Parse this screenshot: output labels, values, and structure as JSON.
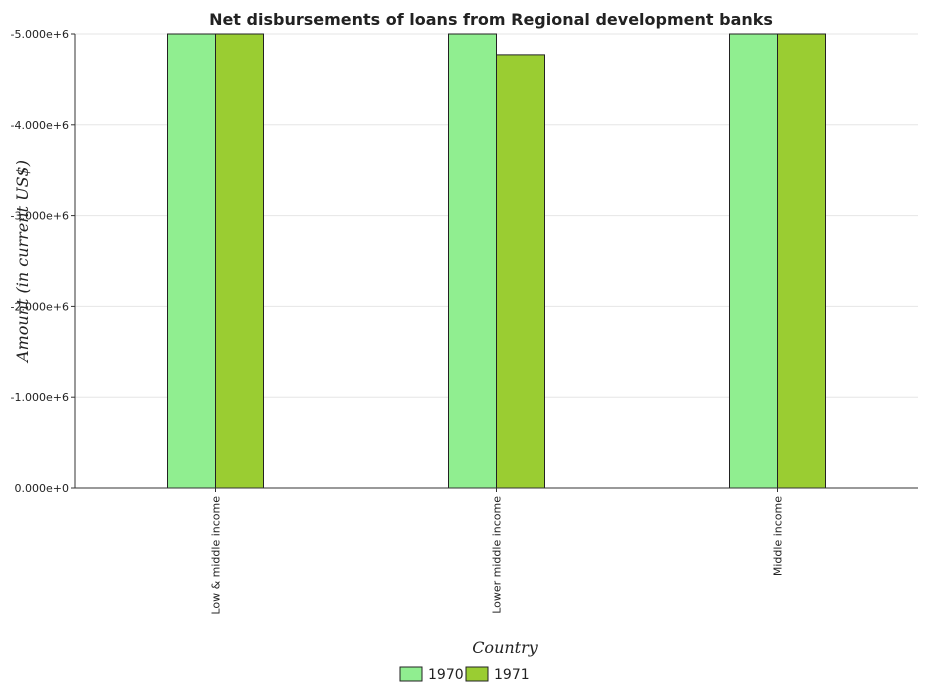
{
  "chart_data": {
    "type": "bar",
    "title": "Net disbursements of loans from Regional development banks",
    "xlabel": "Country",
    "ylabel": "Amount (in current US$)",
    "categories": [
      "Low & middle income",
      "Lower middle income",
      "Middle income"
    ],
    "series": [
      {
        "name": "1970",
        "color": "#90ee90",
        "values": [
          -5000000,
          -5000000,
          -5000000
        ]
      },
      {
        "name": "1971",
        "color": "#9acd32",
        "values": [
          -5000000,
          -4770000,
          -5000000
        ]
      }
    ],
    "ylim": [
      0,
      -5000000
    ],
    "yticks": [
      0,
      -1000000,
      -2000000,
      -3000000,
      -4000000,
      -5000000
    ],
    "ytick_labels": [
      "0.000e+0",
      "-1.000e+6",
      "-2.000e+6",
      "-3.000e+6",
      "-4.000e+6",
      "-5.000e+6"
    ],
    "grid": true,
    "legend_position": "bottom-center"
  }
}
